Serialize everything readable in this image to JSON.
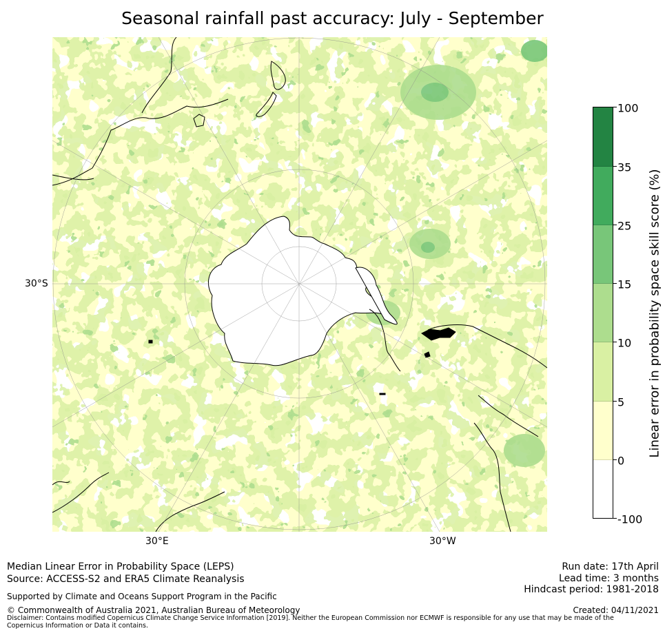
{
  "title": "Seasonal rainfall past accuracy: July - September",
  "map": {
    "lat_label": "30°S",
    "lon_labels": [
      "30°E",
      "30°W"
    ],
    "projection": "south-polar-stereographic",
    "colors": {
      "bin_neg": "#ffffff",
      "bin_0_5": "#ffffcc",
      "bin_5_10": "#d9f0a3",
      "bin_10_15": "#addd8e",
      "bin_15_25": "#78c679",
      "bin_25_35": "#41ab5d",
      "bin_35_100": "#238443",
      "coastline": "#000000",
      "gridline": "#999999"
    }
  },
  "colorbar": {
    "label": "Linear error in probability space skill score (%)",
    "ticks": [
      "100",
      "35",
      "25",
      "15",
      "10",
      "5",
      "0",
      "-100"
    ],
    "bins": [
      {
        "range": "-100 to 0",
        "color": "#ffffff"
      },
      {
        "range": "0 to 5",
        "color": "#ffffcc"
      },
      {
        "range": "5 to 10",
        "color": "#d9f0a3"
      },
      {
        "range": "10 to 15",
        "color": "#addd8e"
      },
      {
        "range": "15 to 25",
        "color": "#78c679"
      },
      {
        "range": "25 to 35",
        "color": "#41ab5d"
      },
      {
        "range": "35 to 100",
        "color": "#238443"
      }
    ]
  },
  "footer": {
    "metric": "Median Linear Error in Probability Space (LEPS)",
    "source": "Source: ACCESS-S2 and ERA5 Climate Reanalysis",
    "support": "Supported by Climate and Oceans Support Program in the Pacific",
    "copyright": "© Commonwealth of Australia 2021, Australian Bureau of Meteorology",
    "disclaimer": "Disclaimer: Contains modified Copernicus Climate Change Service Information [2019]. Neither the European Commission nor ECMWF is responsible for any use that may be made of the Copernicus Information or Data it contains.",
    "run_date": "Run date: 17th April",
    "lead_time": "Lead time: 3 months",
    "hindcast": "Hindcast period: 1981-2018",
    "created": "Created: 04/11/2021"
  }
}
